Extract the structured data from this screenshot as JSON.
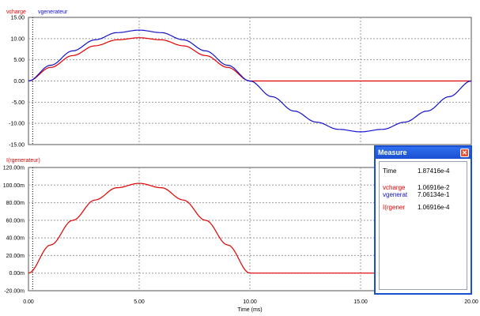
{
  "window": {
    "colors": {
      "vcharge": "#e00000",
      "vgenerateur": "#1010c8",
      "igen": "#e00000",
      "grid": "#9a9a9a"
    }
  },
  "top_plot": {
    "trace_labels": [
      "vcharge",
      "vgenerateur"
    ],
    "y_ticks": [
      "15.00",
      "10.00",
      "5.00",
      "0.00",
      "-5.00",
      "-10.00",
      "-15.00"
    ]
  },
  "bottom_plot": {
    "trace_labels": [
      "I(rgenerateur)"
    ],
    "y_ticks": [
      "120.00m",
      "100.00m",
      "80.00m",
      "60.00m",
      "40.00m",
      "20.00m",
      "0.00m",
      "-20.00m"
    ]
  },
  "x_axis": {
    "ticks": [
      "0.00",
      "5.00",
      "10.00",
      "15.00",
      "20.00"
    ],
    "label": "Time (ms)"
  },
  "measure": {
    "title": "Measure",
    "close_icon": "close-icon",
    "time_label": "Time",
    "time_value": "1.87416e-4",
    "rows": [
      {
        "label": "vcharge",
        "value": "1.06916e-2",
        "color": "#e00000"
      },
      {
        "label": "vgenerat",
        "value": "7.06134e-1",
        "color": "#1010c8"
      },
      {
        "label": "I(rgener",
        "value": "1.06916e-4",
        "color": "#e00000"
      }
    ]
  },
  "chart_data": [
    {
      "type": "line",
      "x": [
        0,
        1,
        2,
        3,
        4,
        5,
        6,
        7,
        8,
        9,
        10,
        11,
        12,
        13,
        14,
        15,
        16,
        17,
        18,
        19,
        20
      ],
      "series": [
        {
          "name": "vcharge",
          "values": [
            0,
            3.2,
            6.0,
            8.3,
            9.7,
            10.2,
            9.7,
            8.3,
            6.0,
            3.2,
            0,
            0,
            0,
            0,
            0,
            0,
            0,
            0,
            0,
            0,
            0
          ]
        },
        {
          "name": "vgenerateur",
          "values": [
            0,
            3.7,
            7.1,
            9.7,
            11.4,
            12.0,
            11.4,
            9.7,
            7.1,
            3.7,
            0,
            -3.7,
            -7.1,
            -9.7,
            -11.4,
            -12.0,
            -11.4,
            -9.7,
            -7.1,
            -3.7,
            0
          ]
        }
      ],
      "xlabel": "",
      "ylabel": "",
      "xlim": [
        0,
        20
      ],
      "ylim": [
        -15,
        15
      ],
      "grid": true
    },
    {
      "type": "line",
      "x": [
        0,
        1,
        2,
        3,
        4,
        5,
        6,
        7,
        8,
        9,
        10,
        11,
        12,
        13,
        14,
        15,
        16,
        17,
        18,
        19,
        20
      ],
      "series": [
        {
          "name": "I(rgenerateur)",
          "values": [
            0,
            32,
            60,
            83,
            97,
            102,
            97,
            83,
            60,
            32,
            0,
            0,
            0,
            0,
            0,
            0,
            0,
            0,
            0,
            0,
            0
          ]
        }
      ],
      "xlabel": "Time (ms)",
      "ylabel": "",
      "xlim": [
        0,
        20
      ],
      "ylim": [
        -20,
        120
      ],
      "yunit": "mA",
      "grid": true
    }
  ]
}
